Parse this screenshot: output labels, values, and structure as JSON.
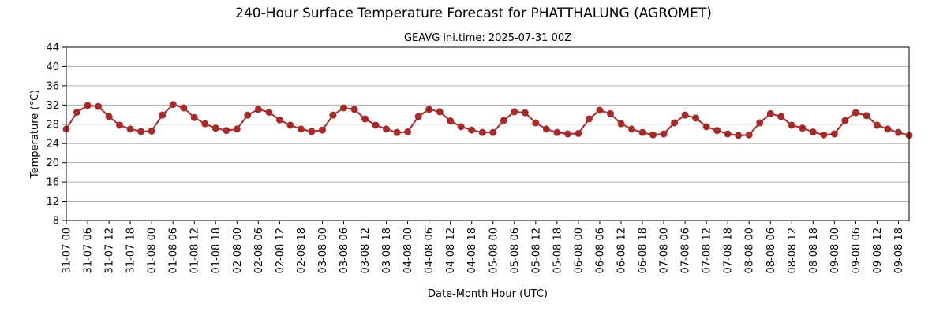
{
  "chart_data": {
    "type": "line",
    "title": "240-Hour Surface Temperature Forecast for PHATTHALUNG (AGROMET)",
    "subtitle": "GEAVG ini.time: 2025-07-31 00Z",
    "xlabel": "Date-Month Hour (UTC)",
    "ylabel": "Temperature (°C)",
    "ylim": [
      8,
      44
    ],
    "yticks": [
      8,
      12,
      16,
      20,
      24,
      28,
      32,
      36,
      40,
      44
    ],
    "grid": "horizontal",
    "x_tick_labels": [
      "31-07 00",
      "31-07 06",
      "31-07 12",
      "31-07 18",
      "01-08 00",
      "01-08 06",
      "01-08 12",
      "01-08 18",
      "02-08 00",
      "02-08 06",
      "02-08 12",
      "02-08 18",
      "03-08 00",
      "03-08 06",
      "03-08 12",
      "03-08 18",
      "04-08 00",
      "04-08 06",
      "04-08 12",
      "04-08 18",
      "05-08 00",
      "05-08 06",
      "05-08 12",
      "05-08 18",
      "06-08 00",
      "06-08 06",
      "06-08 12",
      "06-08 18",
      "07-08 00",
      "07-08 06",
      "07-08 12",
      "07-08 18",
      "08-08 00",
      "08-08 06",
      "08-08 12",
      "08-08 18",
      "09-08 00",
      "09-08 06",
      "09-08 12",
      "09-08 18"
    ],
    "x_start": "2025-07-31 00Z",
    "x_step_hours": 3,
    "series": [
      {
        "color": "#a52a2a",
        "values": [
          27.0,
          30.5,
          31.9,
          31.7,
          29.6,
          27.8,
          27.0,
          26.5,
          26.6,
          29.9,
          32.1,
          31.4,
          29.4,
          28.1,
          27.2,
          26.7,
          27.0,
          29.9,
          31.1,
          30.5,
          28.9,
          27.8,
          27.0,
          26.5,
          26.8,
          29.9,
          31.4,
          31.1,
          29.1,
          27.8,
          27.0,
          26.3,
          26.4,
          29.6,
          31.1,
          30.6,
          28.7,
          27.5,
          26.8,
          26.3,
          26.3,
          28.8,
          30.6,
          30.4,
          28.3,
          27.0,
          26.3,
          26.0,
          26.1,
          29.1,
          30.9,
          30.2,
          28.1,
          27.0,
          26.3,
          25.8,
          26.0,
          28.3,
          29.9,
          29.3,
          27.5,
          26.7,
          26.0,
          25.7,
          25.8,
          28.3,
          30.2,
          29.6,
          27.8,
          27.2,
          26.4,
          25.8,
          26.0,
          28.8,
          30.4,
          29.8,
          27.8,
          27.0,
          26.3,
          25.7
        ]
      }
    ]
  }
}
